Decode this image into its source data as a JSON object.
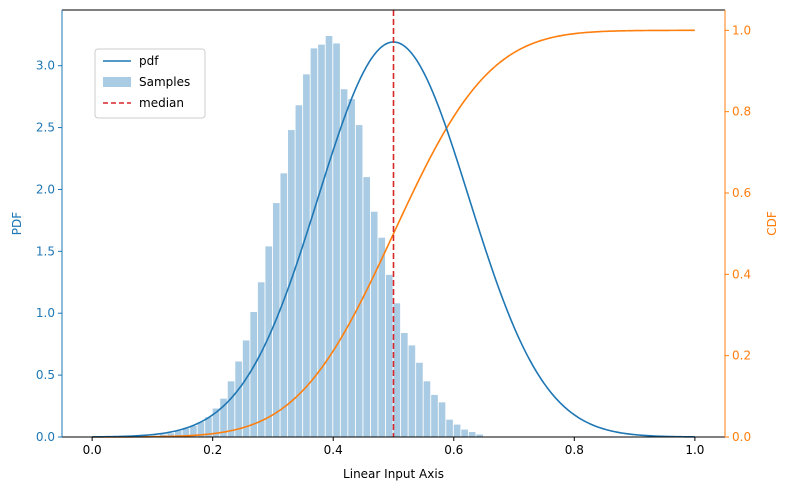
{
  "chart_data": {
    "type": "bar",
    "title": "",
    "xlabel": "Linear Input Axis",
    "ylabel_left": "PDF",
    "ylabel_right": "CDF",
    "xlim": [
      -0.05,
      1.05
    ],
    "ylim_left": [
      0,
      3.45
    ],
    "ylim_right": [
      0,
      1.05
    ],
    "x_ticks": [
      0.0,
      0.2,
      0.4,
      0.6,
      0.8,
      1.0
    ],
    "x_tick_labels": [
      "0.0",
      "0.2",
      "0.4",
      "0.6",
      "0.8",
      "1.0"
    ],
    "y_left_ticks": [
      0.0,
      0.5,
      1.0,
      1.5,
      2.0,
      2.5,
      3.0
    ],
    "y_left_tick_labels": [
      "0.0",
      "0.5",
      "1.0",
      "1.5",
      "2.0",
      "2.5",
      "3.0"
    ],
    "y_right_ticks": [
      0.0,
      0.2,
      0.4,
      0.6,
      0.8,
      1.0
    ],
    "y_right_tick_labels": [
      "0.0",
      "0.2",
      "0.4",
      "0.6",
      "0.8",
      "1.0"
    ],
    "grid": false,
    "legend_placement": "upper-left",
    "colors": {
      "pdf": "#1f77b4",
      "cdf": "#ff7f0e",
      "samples": "#a9cbe3",
      "median": "#d62728",
      "left_axis": "#1f77b4",
      "right_axis": "#ff7f0e",
      "frame": "#000000"
    },
    "legend": [
      {
        "label": "pdf",
        "kind": "line",
        "series": "pdf"
      },
      {
        "label": "Samples",
        "kind": "patch",
        "series": "samples"
      },
      {
        "label": "median",
        "kind": "dashed",
        "series": "median"
      }
    ],
    "median": 0.5,
    "histogram": {
      "bin_start": 0.1,
      "bin_width": 0.0125,
      "counts": [
        0.01,
        0.02,
        0.03,
        0.05,
        0.07,
        0.09,
        0.12,
        0.16,
        0.23,
        0.31,
        0.45,
        0.61,
        0.78,
        1.01,
        1.25,
        1.54,
        1.89,
        2.13,
        2.48,
        2.68,
        2.93,
        3.14,
        3.17,
        3.24,
        3.18,
        2.81,
        2.73,
        2.52,
        2.1,
        1.82,
        1.61,
        1.31,
        1.08,
        0.84,
        0.74,
        0.6,
        0.45,
        0.34,
        0.28,
        0.14,
        0.1,
        0.06,
        0.04,
        0.02
      ]
    },
    "series": [
      {
        "name": "pdf",
        "axis": "left",
        "distribution": "normal",
        "mean": 0.5,
        "sd": 0.125,
        "x_range": [
          0.0,
          1.0
        ]
      },
      {
        "name": "",
        "axis": "right",
        "distribution": "normal-cdf",
        "mean": 0.5,
        "sd": 0.125,
        "x_range": [
          0.0,
          1.0
        ]
      }
    ]
  }
}
